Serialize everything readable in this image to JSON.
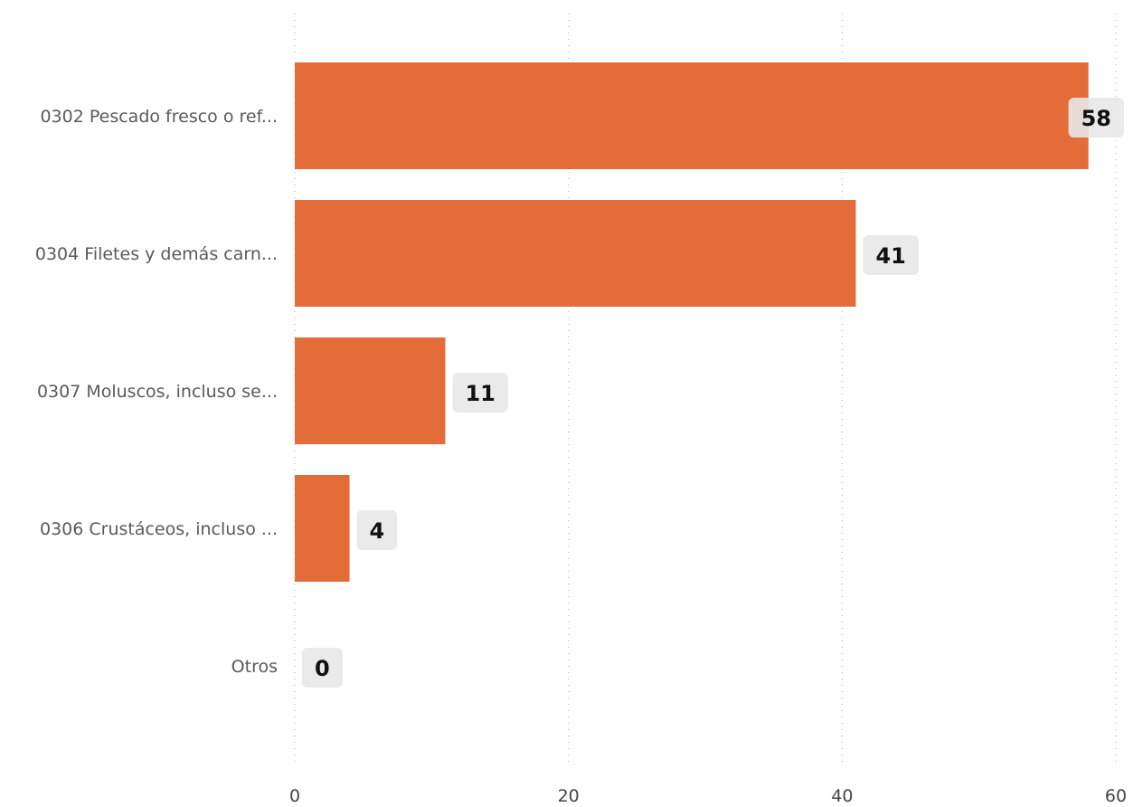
{
  "chart_data": {
    "type": "bar",
    "orientation": "horizontal",
    "categories": [
      "0302 Pescado fresco o ref...",
      "0304 Filetes y demás carn...",
      "0307 Moluscos, incluso se...",
      "0306 Crustáceos, incluso ...",
      "Otros"
    ],
    "values": [
      58,
      41,
      11,
      4,
      0
    ],
    "value_labels": [
      "58",
      "41",
      "11",
      "4",
      "0"
    ],
    "xlim": [
      0,
      60
    ],
    "x_ticks": [
      0,
      20,
      40,
      60
    ],
    "x_tick_labels": [
      "0",
      "20",
      "40",
      "60"
    ],
    "grid": true,
    "legend": "none",
    "colors": {
      "bar": "#E46C38",
      "label_box": "#E8E8E8",
      "grid": "#B9B9B9"
    }
  }
}
